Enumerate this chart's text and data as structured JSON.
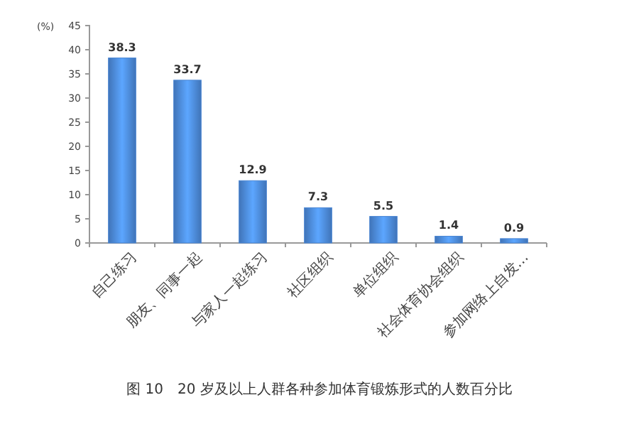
{
  "chart_data": {
    "type": "bar",
    "title": "图 10　20 岁及以上人群各种参加体育锻炼形式的人数百分比",
    "ylabel": "(%)",
    "categories": [
      "自己练习",
      "朋友、同事一起",
      "与家人一起练习",
      "社区组织",
      "单位组织",
      "社会体育协会组织",
      "参加网络上自发…"
    ],
    "values": [
      38.3,
      33.7,
      12.9,
      7.3,
      5.5,
      1.4,
      0.9
    ],
    "color": "#4a86d4",
    "ylim": [
      0,
      45
    ],
    "yticks": [
      0,
      5,
      10,
      15,
      20,
      25,
      30,
      35,
      40,
      45
    ],
    "grid": false,
    "data_labels": true
  }
}
